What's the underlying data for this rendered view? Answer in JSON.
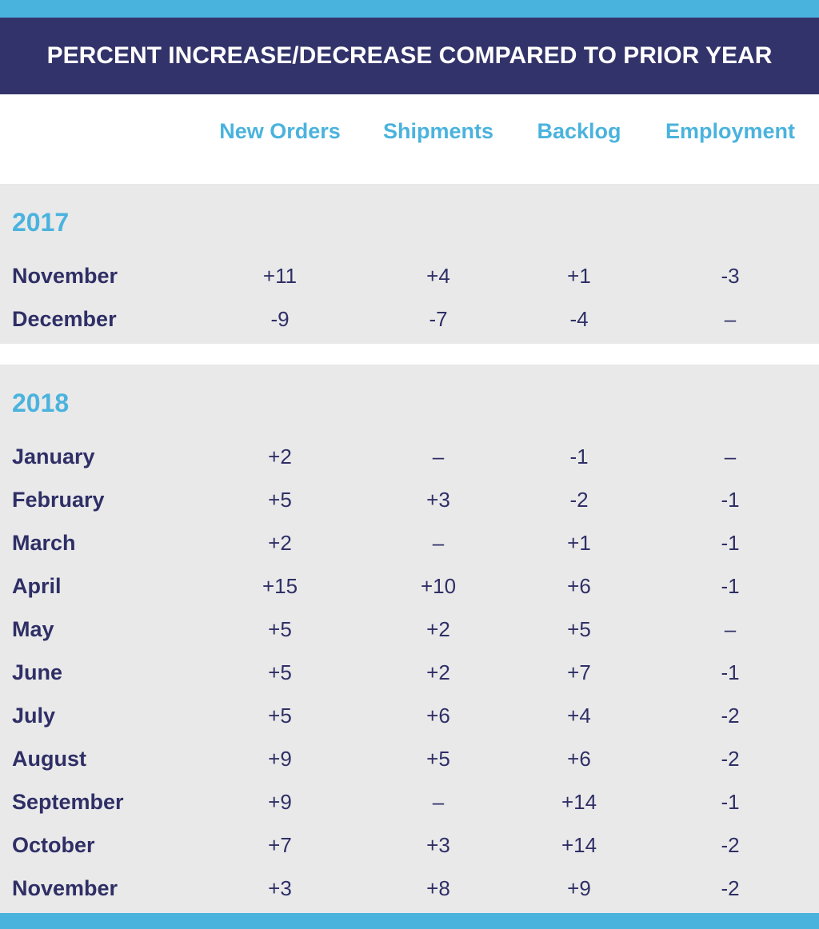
{
  "header": {
    "title": "PERCENT INCREASE/DECREASE COMPARED TO PRIOR YEAR"
  },
  "table": {
    "columns": [
      "New Orders",
      "Shipments",
      "Backlog",
      "Employment"
    ],
    "sections": [
      {
        "year": "2017",
        "rows": [
          [
            "November",
            "+11",
            "+4",
            "+1",
            "-3"
          ],
          [
            "December",
            "-9",
            "-7",
            "-4",
            "–"
          ]
        ]
      },
      {
        "year": "2018",
        "rows": [
          [
            "January",
            "+2",
            "–",
            "-1",
            "–"
          ],
          [
            "February",
            "+5",
            "+3",
            "-2",
            "-1"
          ],
          [
            "March",
            "+2",
            "–",
            "+1",
            "-1"
          ],
          [
            "April",
            "+15",
            "+10",
            "+6",
            "-1"
          ],
          [
            "May",
            "+5",
            "+2",
            "+5",
            "–"
          ],
          [
            "June",
            "+5",
            "+2",
            "+7",
            "-1"
          ],
          [
            "July",
            "+5",
            "+6",
            "+4",
            "-2"
          ],
          [
            "August",
            "+9",
            "+5",
            "+6",
            "-2"
          ],
          [
            "September",
            "+9",
            "–",
            "+14",
            "-1"
          ],
          [
            "October",
            "+7",
            "+3",
            "+14",
            "-2"
          ],
          [
            "November",
            "+3",
            "+8",
            "+9",
            "-2"
          ]
        ]
      }
    ]
  }
}
